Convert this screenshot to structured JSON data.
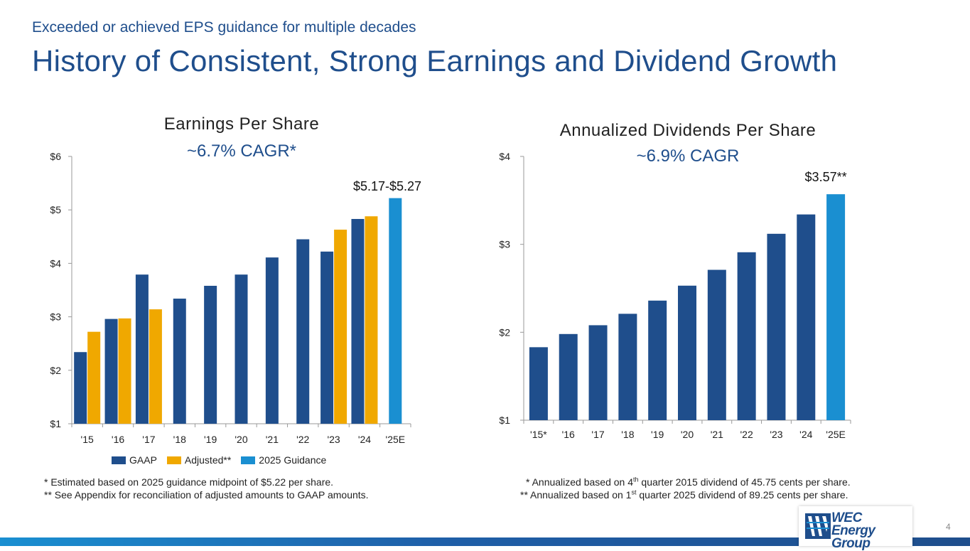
{
  "header": {
    "subtitle": "Exceeded or achieved EPS guidance for multiple decades",
    "title": "History of Consistent, Strong Earnings and Dividend Growth"
  },
  "chart_data": [
    {
      "type": "bar",
      "title": "Earnings Per Share",
      "subtitle": "~6.7% CAGR*",
      "categories": [
        "'15",
        "'16",
        "'17",
        "'18",
        "'19",
        "'20",
        "'21",
        "'22",
        "'23",
        "'24",
        "'25E"
      ],
      "ylim": [
        1,
        6
      ],
      "y_ticks": [
        "$1",
        "$2",
        "$3",
        "$4",
        "$5",
        "$6"
      ],
      "series": [
        {
          "name": "GAAP",
          "color": "#1f4e8c",
          "values": [
            2.34,
            2.96,
            3.79,
            3.34,
            3.58,
            3.79,
            4.11,
            4.45,
            4.22,
            4.83,
            null
          ]
        },
        {
          "name": "Adjusted**",
          "color": "#f0a800",
          "values": [
            2.72,
            2.97,
            3.14,
            null,
            null,
            null,
            null,
            null,
            4.63,
            4.88,
            null
          ]
        },
        {
          "name": "2025 Guidance",
          "color": "#1a8fd1",
          "values": [
            null,
            null,
            null,
            null,
            null,
            null,
            null,
            null,
            null,
            null,
            5.22
          ]
        }
      ],
      "annotation": "$5.17-$5.27",
      "grid": false,
      "legend": "bottom"
    },
    {
      "type": "bar",
      "title": "Annualized Dividends Per Share",
      "subtitle": "~6.9% CAGR",
      "categories": [
        "'15*",
        "'16",
        "'17",
        "'18",
        "'19",
        "'20",
        "'21",
        "'22",
        "'23",
        "'24",
        "'25E"
      ],
      "ylim": [
        1,
        4
      ],
      "y_ticks": [
        "$1",
        "$2",
        "$3",
        "$4"
      ],
      "series": [
        {
          "values": [
            1.83,
            1.98,
            2.08,
            2.21,
            2.36,
            2.53,
            2.71,
            2.91,
            3.12,
            3.34,
            3.57
          ]
        }
      ],
      "colors": {
        "bar": "#1f4e8c",
        "last_bar": "#1a8fd1"
      },
      "annotation": "$3.57**",
      "grid": false
    }
  ],
  "notes": {
    "left_1": "* Estimated based on 2025 guidance midpoint of $5.22 per share.",
    "left_2": "** See Appendix for reconciliation of adjusted amounts to GAAP amounts.",
    "right_1_a": "* Annualized based on 4",
    "right_1_sup": "th",
    "right_1_b": " quarter 2015 dividend of 45.75 cents per share.",
    "right_2_a": "** Annualized based on 1",
    "right_2_sup": "st",
    "right_2_b": " quarter 2025 dividend of 89.25 cents per share."
  },
  "logo": {
    "line1": "WEC",
    "line2": "Energy Group"
  },
  "page_number": "4"
}
